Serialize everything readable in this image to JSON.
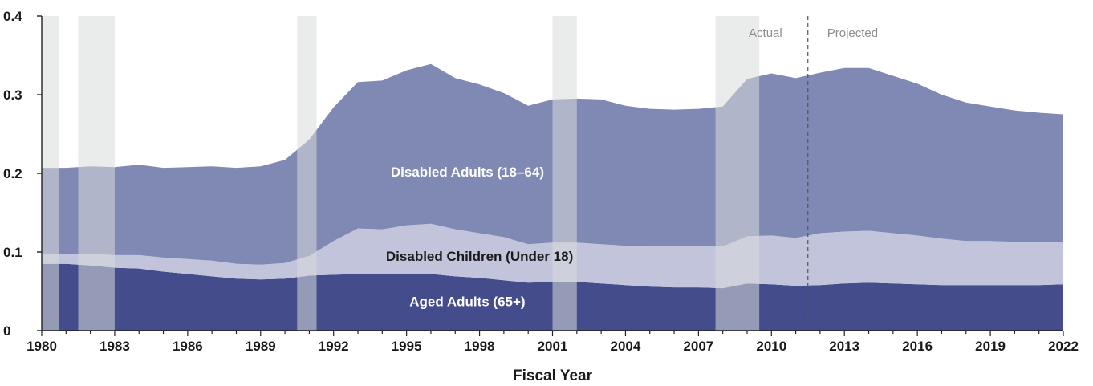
{
  "chart_data": {
    "type": "area",
    "stacked": true,
    "xlabel": "Fiscal Year",
    "ylabel": "",
    "ylim": [
      0,
      0.4
    ],
    "xlim": [
      1980,
      2022
    ],
    "y_ticks": [
      0,
      0.1,
      0.2,
      0.3,
      0.4
    ],
    "y_tick_labels": [
      "0",
      "0.1",
      "0.2",
      "0.3",
      "0.4"
    ],
    "x_ticks": [
      1980,
      1983,
      1986,
      1989,
      1992,
      1995,
      1998,
      2001,
      2004,
      2007,
      2010,
      2013,
      2016,
      2019,
      2022
    ],
    "x_tick_labels": [
      "1980",
      "1983",
      "1986",
      "1989",
      "1992",
      "1995",
      "1998",
      "2001",
      "2004",
      "2007",
      "2010",
      "2013",
      "2016",
      "2019",
      "2022"
    ],
    "x": [
      1980,
      1981,
      1982,
      1983,
      1984,
      1985,
      1986,
      1987,
      1988,
      1989,
      1990,
      1991,
      1992,
      1993,
      1994,
      1995,
      1996,
      1997,
      1998,
      1999,
      2000,
      2001,
      2002,
      2003,
      2004,
      2005,
      2006,
      2007,
      2008,
      2009,
      2010,
      2011,
      2012,
      2013,
      2014,
      2015,
      2016,
      2017,
      2018,
      2019,
      2020,
      2021,
      2022
    ],
    "series": [
      {
        "name": "Aged Adults (65+)",
        "color": "#444c8c",
        "label_color": "#ffffff",
        "label_at": [
          1997.5,
          0.031
        ],
        "values": [
          0.085,
          0.085,
          0.083,
          0.08,
          0.079,
          0.075,
          0.072,
          0.069,
          0.066,
          0.065,
          0.066,
          0.07,
          0.071,
          0.072,
          0.072,
          0.072,
          0.072,
          0.069,
          0.067,
          0.064,
          0.061,
          0.062,
          0.062,
          0.06,
          0.058,
          0.056,
          0.055,
          0.055,
          0.054,
          0.06,
          0.059,
          0.057,
          0.058,
          0.06,
          0.061,
          0.06,
          0.059,
          0.058,
          0.058,
          0.058,
          0.058,
          0.058,
          0.059
        ]
      },
      {
        "name": "Disabled Children (Under 18)",
        "color": "#c2c4dc",
        "label_color": "#1a1a1a",
        "label_at": [
          1998,
          0.089
        ],
        "values": [
          0.013,
          0.013,
          0.015,
          0.016,
          0.017,
          0.018,
          0.019,
          0.02,
          0.019,
          0.019,
          0.02,
          0.025,
          0.043,
          0.058,
          0.057,
          0.062,
          0.064,
          0.06,
          0.057,
          0.055,
          0.049,
          0.05,
          0.05,
          0.05,
          0.05,
          0.051,
          0.052,
          0.052,
          0.053,
          0.06,
          0.062,
          0.061,
          0.066,
          0.066,
          0.066,
          0.064,
          0.062,
          0.059,
          0.056,
          0.056,
          0.055,
          0.055,
          0.054
        ]
      },
      {
        "name": "Disabled Adults (18–64)",
        "color": "#8088b4",
        "label_color": "#ffffff",
        "label_at": [
          1997.5,
          0.196
        ],
        "values": [
          0.109,
          0.109,
          0.111,
          0.112,
          0.115,
          0.114,
          0.117,
          0.12,
          0.122,
          0.125,
          0.131,
          0.148,
          0.17,
          0.186,
          0.189,
          0.197,
          0.203,
          0.192,
          0.189,
          0.183,
          0.176,
          0.182,
          0.183,
          0.184,
          0.178,
          0.175,
          0.174,
          0.175,
          0.178,
          0.2,
          0.206,
          0.203,
          0.204,
          0.208,
          0.207,
          0.2,
          0.193,
          0.183,
          0.176,
          0.171,
          0.167,
          0.164,
          0.162
        ]
      }
    ],
    "recession_bands": [
      [
        1980,
        1980.7
      ],
      [
        1981.5,
        1983
      ],
      [
        1990.5,
        1991.3
      ],
      [
        2001,
        2002
      ],
      [
        2007.7,
        2009.5
      ]
    ],
    "recession_color": "#d8dada",
    "projection_start": 2011.5,
    "annotations": [
      "Actual",
      "Projected"
    ],
    "grid": false,
    "legend": "none"
  }
}
